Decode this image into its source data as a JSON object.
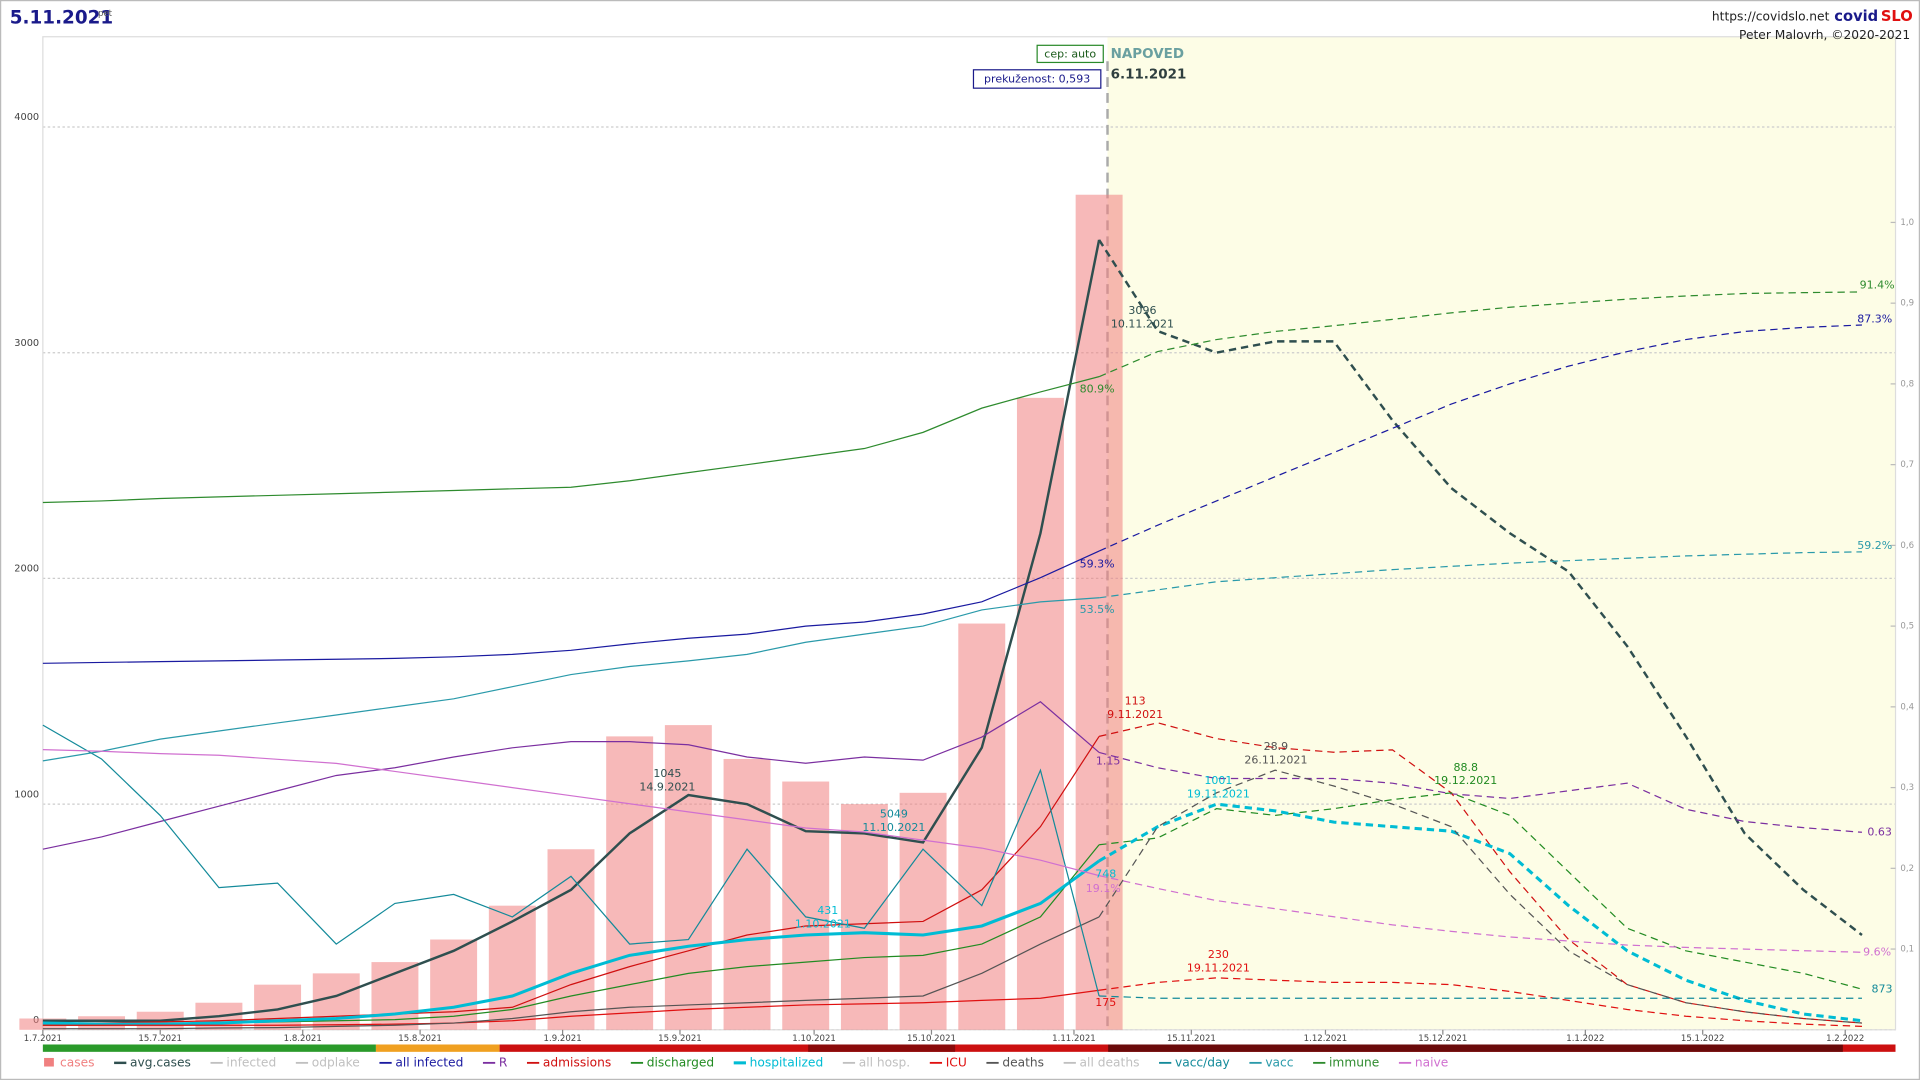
{
  "chart_data": {
    "type": "line",
    "title": "5.11.2021",
    "title_suffix": "pet",
    "site": "https://covidslo.net",
    "brand_a": "covid",
    "brand_b": "SLO",
    "author": "Peter Malovrh, ©2020-2021",
    "box_model": "cep: auto",
    "box_immunity": "prekuženost: 0,593",
    "forecast_label": "NAPOVED",
    "forecast_date": "6.11.2021",
    "forecast_start": "2021-11-05",
    "grid": true,
    "x": [
      "2021-07-01",
      "2021-07-08",
      "2021-07-15",
      "2021-07-22",
      "2021-07-29",
      "2021-08-05",
      "2021-08-12",
      "2021-08-19",
      "2021-08-26",
      "2021-09-02",
      "2021-09-09",
      "2021-09-16",
      "2021-09-23",
      "2021-09-30",
      "2021-10-07",
      "2021-10-14",
      "2021-10-21",
      "2021-10-28",
      "2021-11-04",
      "2021-11-11",
      "2021-11-18",
      "2021-11-25",
      "2021-12-02",
      "2021-12-09",
      "2021-12-16",
      "2021-12-23",
      "2021-12-30",
      "2022-01-06",
      "2022-01-13",
      "2022-01-20",
      "2022-01-27",
      "2022-02-03"
    ],
    "xlim": [
      "2021-07-01",
      "2022-02-07"
    ],
    "xticks": [
      {
        "value": "2021-07-01",
        "label": "1.7.2021"
      },
      {
        "value": "2021-07-15",
        "label": "15.7.2021"
      },
      {
        "value": "2021-08-01",
        "label": "1.8.2021"
      },
      {
        "value": "2021-08-15",
        "label": "15.8.2021"
      },
      {
        "value": "2021-09-01",
        "label": "1.9.2021"
      },
      {
        "value": "2021-09-15",
        "label": "15.9.2021"
      },
      {
        "value": "2021-10-01",
        "label": "1.10.2021"
      },
      {
        "value": "2021-10-15",
        "label": "15.10.2021"
      },
      {
        "value": "2021-11-01",
        "label": "1.11.2021"
      },
      {
        "value": "2021-11-15",
        "label": "15.11.2021"
      },
      {
        "value": "2021-12-01",
        "label": "1.12.2021"
      },
      {
        "value": "2021-12-15",
        "label": "15.12.2021"
      },
      {
        "value": "2022-01-01",
        "label": "1.1.2022"
      },
      {
        "value": "2022-01-15",
        "label": "15.1.2022"
      },
      {
        "value": "2022-02-01",
        "label": "1.2.2022"
      }
    ],
    "ylim": [
      0,
      4400
    ],
    "yticks": [
      0,
      1000,
      2000,
      3000,
      4000
    ],
    "y2lim": [
      0,
      1.23
    ],
    "y2ticks": [
      {
        "value": 0.1,
        "label": "0,1"
      },
      {
        "value": 0.2,
        "label": "0,2"
      },
      {
        "value": 0.3,
        "label": "0,3"
      },
      {
        "value": 0.4,
        "label": "0,4"
      },
      {
        "value": 0.5,
        "label": "0,5"
      },
      {
        "value": 0.6,
        "label": "0,6"
      },
      {
        "value": 0.7,
        "label": "0,7"
      },
      {
        "value": 0.8,
        "label": "0,8"
      },
      {
        "value": 0.9,
        "label": "0,9"
      },
      {
        "value": 1.0,
        "label": "1,0"
      }
    ],
    "y3lim": [
      -0.656,
      5.81
    ],
    "series": [
      {
        "name": "cases",
        "type": "bar",
        "color": "#f08080",
        "values": [
          50,
          60,
          80,
          120,
          200,
          250,
          300,
          400,
          550,
          800,
          1300,
          1350,
          1200,
          1100,
          1000,
          1050,
          1800,
          2800,
          3700,
          null,
          null,
          null,
          null,
          null,
          null,
          null,
          null,
          null,
          null,
          null,
          null,
          null
        ]
      },
      {
        "name": "avg.cases",
        "color": "#2f4f4f",
        "line_width": 2,
        "values": [
          40,
          40,
          40,
          60,
          90,
          150,
          250,
          350,
          480,
          620,
          870,
          1040,
          1000,
          880,
          870,
          830,
          1250,
          2200,
          3500,
          3096,
          3000,
          3050,
          3050,
          2700,
          2400,
          2200,
          2030,
          1700,
          1300,
          870,
          620,
          420
        ]
      },
      {
        "name": "infected",
        "color": "#c0c0c0",
        "hidden": true
      },
      {
        "name": "odplake",
        "color": "#c0c0c0",
        "hidden": true
      },
      {
        "name": "all infected",
        "color": "#1a1aa0",
        "axis": "y2",
        "line_width": 1,
        "values": [
          0.454,
          0.455,
          0.456,
          0.457,
          0.458,
          0.459,
          0.46,
          0.462,
          0.465,
          0.47,
          0.478,
          0.485,
          0.49,
          0.5,
          0.505,
          0.515,
          0.53,
          0.56,
          0.593,
          0.625,
          0.655,
          0.685,
          0.715,
          0.745,
          0.775,
          0.8,
          0.822,
          0.84,
          0.855,
          0.865,
          0.87,
          0.873
        ]
      },
      {
        "name": "R",
        "color": "#7b2fa0",
        "axis": "y3",
        "line_width": 1,
        "values": [
          0.52,
          0.6,
          0.7,
          0.8,
          0.9,
          1.0,
          1.05,
          1.12,
          1.18,
          1.22,
          1.22,
          1.2,
          1.12,
          1.08,
          1.12,
          1.1,
          1.25,
          1.48,
          1.15,
          1.05,
          0.98,
          0.98,
          0.98,
          0.95,
          0.88,
          0.85,
          0.9,
          0.95,
          0.78,
          0.7,
          0.66,
          0.63
        ]
      },
      {
        "name": "admissions",
        "color": "#d01010",
        "line_width": 1,
        "values": [
          30,
          30,
          35,
          40,
          50,
          60,
          70,
          80,
          100,
          200,
          280,
          350,
          420,
          460,
          470,
          480,
          620,
          900,
          1300,
          1360,
          1290,
          1250,
          1230,
          1240,
          1050,
          700,
          400,
          200,
          120,
          80,
          50,
          30
        ]
      },
      {
        "name": "discharged",
        "color": "#228b22",
        "line_width": 1,
        "values": [
          20,
          20,
          25,
          30,
          35,
          40,
          45,
          60,
          90,
          150,
          200,
          250,
          280,
          300,
          320,
          330,
          380,
          500,
          820,
          850,
          980,
          950,
          980,
          1020,
          1050,
          950,
          700,
          450,
          350,
          300,
          250,
          180
        ]
      },
      {
        "name": "hospitalized",
        "color": "#00bcd4",
        "line_width": 2.5,
        "values": [
          30,
          25,
          25,
          30,
          40,
          50,
          70,
          100,
          150,
          250,
          330,
          370,
          400,
          420,
          430,
          420,
          460,
          560,
          748,
          900,
          1000,
          970,
          920,
          900,
          880,
          780,
          550,
          350,
          220,
          130,
          70,
          40
        ]
      },
      {
        "name": "all hosp.",
        "color": "#c0c0c0",
        "hidden": true
      },
      {
        "name": "ICU",
        "color": "#e01010",
        "line_width": 1,
        "values": [
          20,
          20,
          20,
          20,
          20,
          22,
          25,
          30,
          40,
          60,
          75,
          90,
          100,
          110,
          115,
          120,
          130,
          140,
          175,
          210,
          230,
          220,
          210,
          210,
          200,
          170,
          130,
          90,
          60,
          40,
          25,
          15
        ]
      },
      {
        "name": "deaths",
        "color": "#555555",
        "line_width": 1,
        "values": [
          5,
          5,
          5,
          8,
          10,
          15,
          20,
          30,
          50,
          80,
          100,
          110,
          120,
          130,
          140,
          150,
          250,
          380,
          500,
          900,
          1050,
          1150,
          1080,
          1000,
          900,
          600,
          350,
          200,
          120,
          80,
          50,
          30
        ]
      },
      {
        "name": "all deaths",
        "color": "#c0c0c0",
        "hidden": true
      },
      {
        "name": "vacc/day",
        "color": "#138a9a",
        "line_width": 1,
        "values": [
          1350,
          1200,
          950,
          630,
          650,
          380,
          560,
          600,
          500,
          680,
          380,
          400,
          800,
          500,
          450,
          800,
          550,
          1150,
          150,
          140,
          140,
          140,
          140,
          140,
          140,
          140,
          140,
          140,
          140,
          140,
          140,
          140
        ]
      },
      {
        "name": "vacc",
        "color": "#2a9aaa",
        "axis": "y2",
        "line_width": 1,
        "values": [
          0.333,
          0.345,
          0.36,
          0.37,
          0.38,
          0.39,
          0.4,
          0.41,
          0.425,
          0.44,
          0.45,
          0.457,
          0.465,
          0.48,
          0.49,
          0.5,
          0.52,
          0.53,
          0.535,
          0.545,
          0.555,
          0.56,
          0.565,
          0.57,
          0.574,
          0.578,
          0.581,
          0.584,
          0.587,
          0.589,
          0.591,
          0.592
        ]
      },
      {
        "name": "immune",
        "color": "#2e8b2e",
        "axis": "y2",
        "line_width": 1,
        "values": [
          0.653,
          0.655,
          0.658,
          0.66,
          0.662,
          0.664,
          0.666,
          0.668,
          0.67,
          0.672,
          0.68,
          0.69,
          0.7,
          0.71,
          0.72,
          0.74,
          0.77,
          0.79,
          0.809,
          0.84,
          0.855,
          0.865,
          0.872,
          0.88,
          0.888,
          0.895,
          0.9,
          0.905,
          0.909,
          0.912,
          0.913,
          0.914
        ]
      },
      {
        "name": "naive",
        "color": "#d070d0",
        "axis": "y2",
        "line_width": 1,
        "values": [
          0.347,
          0.345,
          0.342,
          0.34,
          0.335,
          0.33,
          0.32,
          0.31,
          0.3,
          0.29,
          0.28,
          0.27,
          0.26,
          0.25,
          0.245,
          0.235,
          0.225,
          0.21,
          0.191,
          0.175,
          0.16,
          0.15,
          0.14,
          0.13,
          0.122,
          0.115,
          0.11,
          0.105,
          0.102,
          0.1,
          0.098,
          0.096
        ]
      }
    ],
    "annotations": [
      {
        "text": "1045",
        "color": "#2f4f4f"
      },
      {
        "text": "14.9.2021",
        "color": "#2f4f4f"
      },
      {
        "text": "5049",
        "color": "#138a9a"
      },
      {
        "text": "11.10.2021",
        "color": "#138a9a"
      },
      {
        "text": "431",
        "color": "#00bcd4"
      },
      {
        "text": "1.10.2021",
        "color": "#00bcd4"
      },
      {
        "text": "3096",
        "color": "#2f4f4f"
      },
      {
        "text": "10.11.2021",
        "color": "#2f4f4f"
      },
      {
        "text": "113",
        "color": "#d01010"
      },
      {
        "text": "9.11.2021",
        "color": "#d01010"
      },
      {
        "text": "28.9",
        "color": "#555555"
      },
      {
        "text": "26.11.2021",
        "color": "#555555"
      },
      {
        "text": "1001",
        "color": "#00bcd4"
      },
      {
        "text": "19.11.2021",
        "color": "#00bcd4"
      },
      {
        "text": "88.8",
        "color": "#228b22"
      },
      {
        "text": "19.12.2021",
        "color": "#228b22"
      },
      {
        "text": "230",
        "color": "#e01010"
      },
      {
        "text": "19.11.2021",
        "color": "#e01010"
      },
      {
        "text": "80.9%",
        "color": "#2e8b2e"
      },
      {
        "text": "59.3%",
        "color": "#1a1aa0"
      },
      {
        "text": "53.5%",
        "color": "#2a9aaa"
      },
      {
        "text": "1.15",
        "color": "#7b2fa0"
      },
      {
        "text": "748",
        "color": "#00bcd4"
      },
      {
        "text": "19.1%",
        "color": "#d070d0"
      },
      {
        "text": "175",
        "color": "#e01010"
      },
      {
        "text": "91.4%",
        "color": "#2e8b2e"
      },
      {
        "text": "87.3%",
        "color": "#1a1aa0"
      },
      {
        "text": "59.2%",
        "color": "#2a9aaa"
      },
      {
        "text": "0.63",
        "color": "#7b2fa0"
      },
      {
        "text": "9.6%",
        "color": "#d070d0"
      },
      {
        "text": "873",
        "color": "#138a9a"
      }
    ]
  }
}
